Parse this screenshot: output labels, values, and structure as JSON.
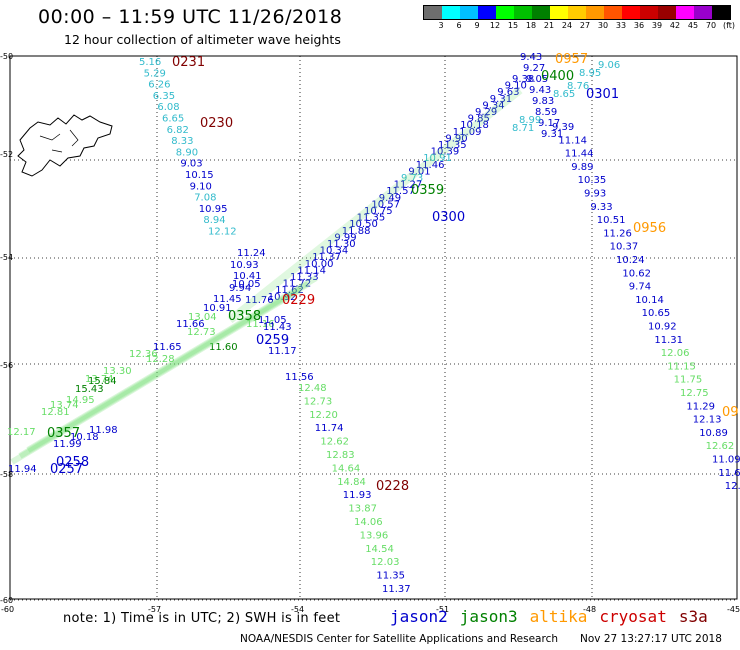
{
  "header": {
    "title": "00:00 – 11:59 UTC 11/26/2018",
    "subtitle": "12 hour collection of altimeter wave heights"
  },
  "colorbar": {
    "colors": [
      "#6e6e6e",
      "#00ffff",
      "#00bfff",
      "#0000ff",
      "#00ff00",
      "#00c000",
      "#008000",
      "#ffff00",
      "#ffcc00",
      "#ff9900",
      "#ff5500",
      "#ff0000",
      "#cc0000",
      "#990000",
      "#ff00ff",
      "#9900cc",
      "#000000"
    ],
    "labels": [
      "3",
      "6",
      "9",
      "12",
      "15",
      "18",
      "21",
      "24",
      "27",
      "30",
      "33",
      "36",
      "39",
      "42",
      "45",
      "70",
      "(ft)"
    ]
  },
  "axes": {
    "lat_labels": [
      "-50",
      "-52",
      "-54",
      "-56",
      "-58",
      "-60"
    ],
    "lon_labels": [
      "-60",
      "-57",
      "-54",
      "-51",
      "-48",
      "-45"
    ]
  },
  "series_colors": {
    "jason2": "#0000cc",
    "jason3": "#008000",
    "altika": "#ff9900",
    "cryosat": "#cc0000",
    "s3a": "#800000",
    "light_green": "#66dd66",
    "cyan": "#33bbcc"
  },
  "time_labels": [
    {
      "text": "0231",
      "sat": "s3a"
    },
    {
      "text": "0230",
      "sat": "s3a"
    },
    {
      "text": "0229",
      "sat": "cryosat"
    },
    {
      "text": "0228",
      "sat": "s3a"
    },
    {
      "text": "0259",
      "sat": "jason2"
    },
    {
      "text": "0358",
      "sat": "jason3"
    },
    {
      "text": "0359",
      "sat": "jason3"
    },
    {
      "text": "0300",
      "sat": "jason2"
    },
    {
      "text": "0301",
      "sat": "jason2"
    },
    {
      "text": "0957",
      "sat": "altika"
    },
    {
      "text": "0400",
      "sat": "jason3"
    },
    {
      "text": "0956",
      "sat": "altika"
    },
    {
      "text": "09",
      "sat": "altika"
    },
    {
      "text": "0357",
      "sat": "jason3"
    },
    {
      "text": "0258",
      "sat": "jason2"
    },
    {
      "text": "0257",
      "sat": "jason2"
    }
  ],
  "tracks": {
    "track_a_cyan_blue": [
      "5.16",
      "5.29",
      "6.26",
      "6.35",
      "6.08",
      "6.65",
      "6.82",
      "8.33",
      "8.90",
      "9.03",
      "10.15",
      "9.10",
      "7.08",
      "10.95",
      "8.94",
      "12.12",
      "11.24",
      "10.93",
      "10.41",
      "10.05",
      "9.94",
      "11.45",
      "10.91",
      "11.66",
      "11.76",
      "11.16",
      "11.05",
      "11.43",
      "11.60",
      "11.17",
      "11.56"
    ],
    "track_a_green_south": [
      "12.48",
      "12.73",
      "12.20",
      "11.74",
      "12.62",
      "12.83",
      "14.64",
      "14.84",
      "11.93",
      "13.87",
      "14.06",
      "13.96",
      "14.54",
      "12.03",
      "11.35",
      "11.37"
    ],
    "track_b_blue": [
      "9.43",
      "9.27",
      "9.05",
      "9.43",
      "9.83",
      "8.59",
      "9.17",
      "9.31",
      "9.39",
      "11.14",
      "11.44",
      "9.89",
      "10.35",
      "9.93",
      "9.33",
      "10.51",
      "11.26",
      "10.37",
      "10.24",
      "10.62",
      "9.74",
      "10.14",
      "10.65",
      "10.92",
      "11.31",
      "12.06",
      "11.15",
      "11.75",
      "12.75",
      "11.29",
      "12.13",
      "10.89",
      "12.62",
      "11.09",
      "11.6",
      "12."
    ],
    "track_b_cyan": [
      "9.06",
      "8.95",
      "8.76",
      "8.65",
      "8.99",
      "8.71"
    ],
    "track_c_blue_diag": [
      "9.38",
      "9.10",
      "9.63",
      "9.31",
      "9.34",
      "9.29",
      "9.85",
      "10.18",
      "11.09",
      "9.90",
      "11.35",
      "10.39",
      "10.91",
      "11.46",
      "9.01",
      "9.73",
      "11.27",
      "11.57",
      "9.49",
      "10.57",
      "10.75",
      "11.35",
      "10.50",
      "11.88",
      "9.99",
      "11.30",
      "10.34",
      "11.37",
      "10.00",
      "11.14",
      "11.33",
      "11.72",
      "11.62",
      "10.92"
    ],
    "track_d_green_diag": [
      "11.65",
      "13.04",
      "12.73",
      "12.28",
      "12.36",
      "13.30",
      "13.74",
      "15.84",
      "15.43",
      "14.95",
      "12.81",
      "13.74",
      "12.17",
      "11.98",
      "10.18",
      "11.99",
      "11.94"
    ]
  },
  "footer": {
    "note": "note: 1) Time is in UTC; 2) SWH is in feet",
    "legend": [
      {
        "label": "jason2",
        "color": "#0000cc"
      },
      {
        "label": "jason3",
        "color": "#008000"
      },
      {
        "label": "altika",
        "color": "#ff9900"
      },
      {
        "label": "cryosat",
        "color": "#cc0000"
      },
      {
        "label": "s3a",
        "color": "#800000"
      }
    ],
    "credit": "NOAA/NESDIS Center for Satellite Applications and Research",
    "generated": "Nov 27 13:27:17 UTC 2018"
  }
}
